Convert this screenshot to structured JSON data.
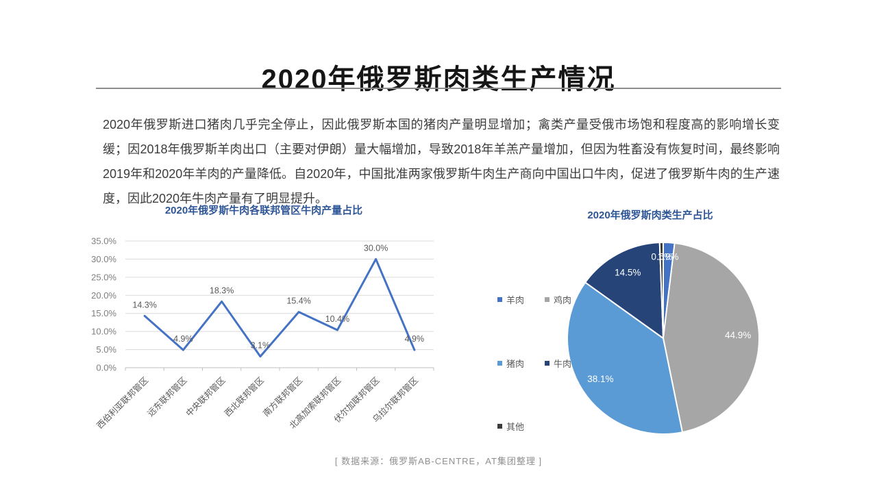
{
  "slide": {
    "title": "2020年俄罗斯肉类生产情况",
    "paragraph": "2020年俄罗斯进口猪肉几乎完全停止，因此俄罗斯本国的猪肉产量明显增加；禽类产量受俄市场饱和程度高的影响增长变缓；因2018年俄罗斯羊肉出口（主要对伊朗）量大幅增加，导致2018年羊羔产量增加，但因为牲畜没有恢复时间，最终影响2019年和2020年羊肉的产量降低。自2020年，中国批准两家俄罗斯牛肉生产商向中国出口牛肉，促进了俄罗斯牛肉的生产速度，因此2020年牛肉产量有了明显提升。",
    "source_note": "[ 数据来源：俄罗斯AB-CENTRE，AT集团整理 ]"
  },
  "theme": {
    "chart_title_color": "#2E5697",
    "grid_color": "#D9D9D9",
    "axis_color": "#BFBFBF",
    "axis_text_color": "#7F7F7F",
    "data_label_color": "#595959",
    "legend_text_color": "#595959",
    "pie_label_color": "#FFFFFF"
  },
  "chart_data": [
    {
      "type": "line",
      "title": "2020年俄罗斯牛肉各联邦管区牛肉产量占比",
      "categories": [
        "西伯利亚联邦管区",
        "远东联邦管区",
        "中央联邦管区",
        "西北联邦管区",
        "南方联邦管区",
        "北高加索联邦管区",
        "伏尔加联邦管区",
        "乌拉尔联邦管区"
      ],
      "values": [
        14.3,
        4.9,
        18.3,
        3.1,
        15.4,
        10.4,
        30.0,
        4.9
      ],
      "data_labels": [
        "14.3%",
        "4.9%",
        "18.3%",
        "3.1%",
        "15.4%",
        "10.4%",
        "30.0%",
        "4.9%"
      ],
      "unit": "%",
      "xlabel": "",
      "ylabel": "",
      "ylim": [
        0,
        35
      ],
      "y_ticks": [
        "0.0%",
        "5.0%",
        "10.0%",
        "15.0%",
        "20.0%",
        "25.0%",
        "30.0%",
        "35.0%"
      ],
      "grid": true,
      "legend": false,
      "line_color": "#4472C4"
    },
    {
      "type": "pie",
      "title": "2020年俄罗斯肉类生产占比",
      "start_angle_deg": 0,
      "clockwise": true,
      "legend_position": "left",
      "slices": [
        {
          "label": "羊肉",
          "value": 1.9,
          "display": "1.9%",
          "color": "#4472C4"
        },
        {
          "label": "鸡肉",
          "value": 44.9,
          "display": "44.9%",
          "color": "#A6A6A6"
        },
        {
          "label": "猪肉",
          "value": 38.1,
          "display": "38.1%",
          "color": "#5B9BD5"
        },
        {
          "label": "牛肉",
          "value": 14.5,
          "display": "14.5%",
          "color": "#264478"
        },
        {
          "label": "其他",
          "value": 0.6,
          "display": "0.6%",
          "color": "#3B3B3B"
        }
      ]
    }
  ]
}
